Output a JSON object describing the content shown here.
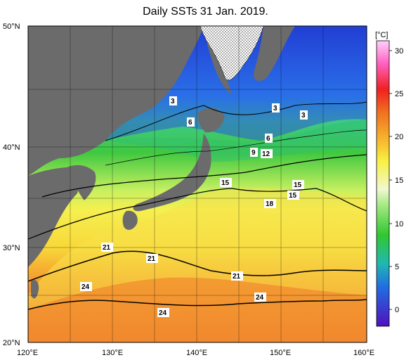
{
  "title": "Daily SSTs 31 Jan. 2019.",
  "axes": {
    "lat_labels": [
      "50°N",
      "40°N",
      "30°N",
      "20°N"
    ],
    "lon_labels": [
      "120°E",
      "130°E",
      "140°E",
      "150°E",
      "160°E"
    ]
  },
  "colorbar": {
    "unit": "[°C]",
    "ticks": [
      "30",
      "25",
      "20",
      "15",
      "10",
      "5",
      "0"
    ]
  },
  "contour_labels": [
    "3",
    "3",
    "3",
    "6",
    "6",
    "9",
    "12",
    "15",
    "15",
    "15",
    "18",
    "21",
    "21",
    "21",
    "24",
    "24",
    "24"
  ],
  "colors": {
    "land": "#6b6b6b",
    "ice": "#ffffff",
    "warm": "#e8401c",
    "mid": "#f5e64a",
    "cold": "#2040d0"
  }
}
